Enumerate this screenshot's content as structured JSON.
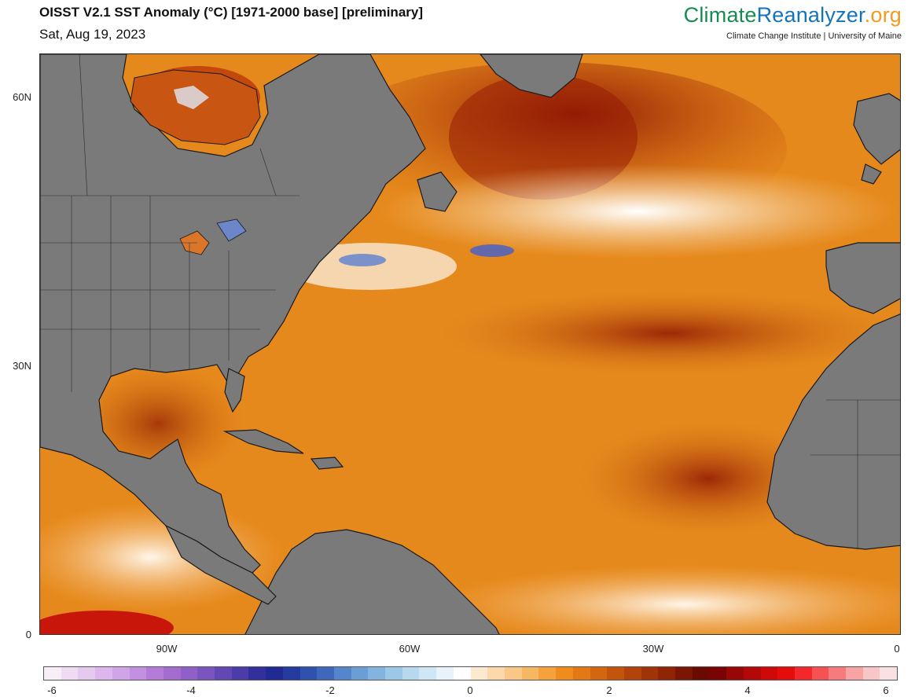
{
  "header": {
    "title": "OISST V2.1 SST Anomaly (°C) [1971-2000 base] [preliminary]",
    "date": "Sat, Aug 19, 2023",
    "brand_part1": "Climate",
    "brand_part2": "Reanalyzer",
    "brand_part3": ".org",
    "brand_sub": "Climate Change Institute | University of Maine"
  },
  "map": {
    "region": "North Atlantic",
    "land_color": "#7a7a7a",
    "lat_labels": [
      "60N",
      "30N",
      "0"
    ],
    "lon_labels": [
      "90W",
      "60W",
      "30W",
      "0"
    ]
  },
  "colorbar": {
    "tick_labels": [
      "-6",
      "-4",
      "-2",
      "0",
      "2",
      "4",
      "6"
    ],
    "colors": [
      "#f7eef8",
      "#efdcf3",
      "#e6c9ef",
      "#dcb6ec",
      "#d1a3e7",
      "#c38fe0",
      "#b47cd8",
      "#a56cd0",
      "#9060c8",
      "#7a55c0",
      "#6348b5",
      "#4b3ca9",
      "#33309e",
      "#202a94",
      "#243c9f",
      "#2e52ae",
      "#3f68bc",
      "#5585ca",
      "#6a9ed5",
      "#82b4df",
      "#9cc8e8",
      "#b6d9ef",
      "#cfe6f5",
      "#e8f2fa",
      "#ffffff",
      "#fde9cf",
      "#fbd9aa",
      "#f9c886",
      "#f7b661",
      "#f5a13d",
      "#f08c1c",
      "#e37814",
      "#d4660f",
      "#c3540c",
      "#b2430a",
      "#a13407",
      "#8f2505",
      "#7c1604",
      "#6a0b02",
      "#7a0404",
      "#980606",
      "#b40707",
      "#cf0808",
      "#e50c0c",
      "#f4282a",
      "#f65253",
      "#f77b7c",
      "#f8a3a4",
      "#f9c6c7",
      "#fae1e1"
    ]
  }
}
